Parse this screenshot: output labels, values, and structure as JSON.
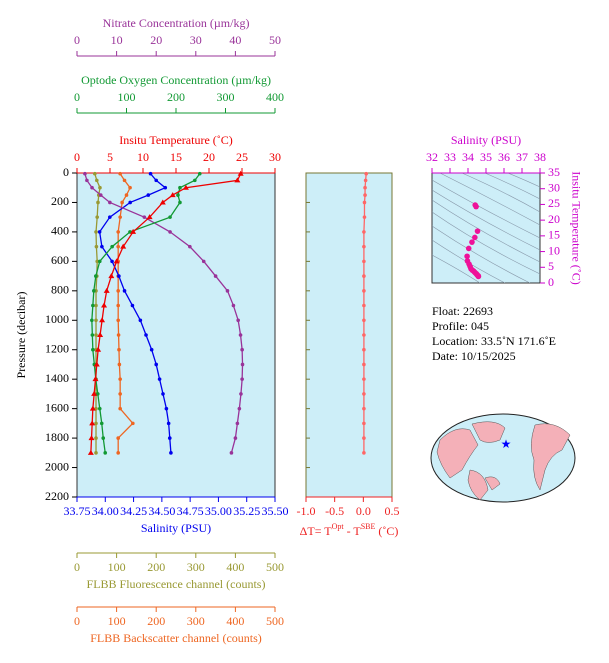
{
  "chart_data": [
    {
      "type": "line",
      "ylabel": "Pressure (decibar)",
      "ylim": [
        0,
        2200
      ],
      "yticks": [
        0,
        200,
        400,
        600,
        800,
        1000,
        1200,
        1400,
        1600,
        1800,
        2000,
        2200
      ],
      "invert_y": true,
      "background": "#cdeef8",
      "axes": [
        {
          "position": "top",
          "label": "Insitu Temperature (˚C)",
          "color": "#ee0000",
          "xlim": [
            0,
            30
          ],
          "xticks": [
            0,
            5,
            10,
            15,
            20,
            25,
            30
          ],
          "marker": "triangle",
          "pressure": [
            5,
            50,
            100,
            150,
            200,
            300,
            400,
            500,
            600,
            700,
            800,
            900,
            1000,
            1100,
            1200,
            1300,
            1400,
            1500,
            1600,
            1700,
            1800,
            1900
          ],
          "values": [
            24.8,
            24.3,
            16.5,
            14.5,
            13.0,
            11.0,
            8.5,
            7.0,
            6.0,
            5.2,
            4.5,
            4.1,
            3.8,
            3.5,
            3.2,
            3.0,
            2.8,
            2.6,
            2.4,
            2.3,
            2.2,
            2.1
          ]
        },
        {
          "position": "top",
          "label": "Optode Oxygen Concentration (µm/kg)",
          "color": "#119933",
          "xlim": [
            0,
            400
          ],
          "xticks": [
            0,
            100,
            200,
            300,
            400
          ],
          "marker": "circle",
          "pressure": [
            5,
            50,
            100,
            150,
            200,
            300,
            400,
            500,
            600,
            700,
            800,
            900,
            1000,
            1100,
            1200,
            1300,
            1400,
            1500,
            1600,
            1700,
            1800,
            1900
          ],
          "values": [
            248,
            238,
            208,
            204,
            208,
            188,
            107,
            71,
            46,
            38,
            34,
            32,
            30,
            31,
            32,
            35,
            38,
            42,
            46,
            50,
            53,
            57
          ]
        },
        {
          "position": "top",
          "label": "Nitrate Concentration (µm/kg)",
          "color": "#993399",
          "xlim": [
            0,
            50
          ],
          "xticks": [
            0,
            10,
            20,
            30,
            40,
            50
          ],
          "marker": "circle",
          "pressure": [
            5,
            50,
            100,
            150,
            200,
            300,
            400,
            500,
            600,
            700,
            800,
            900,
            1000,
            1100,
            1200,
            1300,
            1400,
            1500,
            1600,
            1700,
            1800,
            1900
          ],
          "values": [
            2,
            2.5,
            3.8,
            6,
            8.3,
            17,
            23.5,
            28.5,
            32,
            35,
            38,
            39.5,
            40.7,
            41.3,
            41.7,
            41.8,
            41.7,
            41.4,
            41,
            40.5,
            40,
            39
          ]
        },
        {
          "position": "bottom",
          "label": "Salinity (PSU)",
          "color": "#0000ee",
          "xlim": [
            33.75,
            35.5
          ],
          "xticks": [
            33.75,
            {
              "value": 34,
              "label": "34.00"
            },
            34.25,
            {
              "value": 34.5,
              "label": "34.50"
            },
            34.75,
            {
              "value": 35,
              "label": "35.00"
            },
            35.25,
            {
              "value": 35.5,
              "label": "35.50"
            }
          ],
          "marker": "circle",
          "pressure": [
            5,
            50,
            100,
            150,
            200,
            300,
            400,
            500,
            600,
            700,
            800,
            900,
            1000,
            1100,
            1200,
            1300,
            1400,
            1500,
            1600,
            1700,
            1800,
            1900
          ],
          "values": [
            34.4,
            34.45,
            34.53,
            34.38,
            34.22,
            34.04,
            33.95,
            33.97,
            34.06,
            34.12,
            34.17,
            34.24,
            34.31,
            34.36,
            34.41,
            34.45,
            34.48,
            34.51,
            34.54,
            34.56,
            34.57,
            34.58
          ]
        },
        {
          "position": "bottom",
          "label": "FLBB Fluorescence channel (counts)",
          "color": "#999933",
          "xlim": [
            0,
            500
          ],
          "xticks": [
            0,
            100,
            200,
            300,
            400,
            500
          ],
          "marker": "circle",
          "pressure": [
            5,
            50,
            100,
            150,
            200,
            300,
            400,
            500,
            600,
            700,
            800,
            900,
            1000,
            1100,
            1200,
            1300,
            1400,
            1500,
            1600,
            1700,
            1800,
            1900
          ],
          "values": [
            45,
            50,
            58,
            55,
            53,
            51,
            48,
            49,
            51,
            50,
            48,
            48,
            48,
            48,
            48,
            48,
            48,
            48,
            48,
            48,
            48,
            48
          ]
        },
        {
          "position": "bottom",
          "label": "FLBB Backscatter channel (counts)",
          "color": "#ee6622",
          "xlim": [
            0,
            500
          ],
          "xticks": [
            0,
            100,
            200,
            300,
            400,
            500
          ],
          "marker": "circle",
          "pressure": [
            5,
            50,
            100,
            150,
            200,
            300,
            400,
            500,
            600,
            700,
            800,
            900,
            1000,
            1100,
            1200,
            1300,
            1400,
            1500,
            1600,
            1700,
            1800,
            1900
          ],
          "values": [
            109,
            120,
            134,
            125,
            114,
            109,
            104,
            104,
            104,
            104,
            104,
            104,
            104,
            105,
            106,
            107,
            109,
            109,
            109,
            141,
            104,
            104
          ]
        }
      ]
    },
    {
      "type": "line",
      "xlabel_parts": [
        "ΔT= T",
        "Opt",
        " - T",
        "SBE",
        " (˚C)"
      ],
      "xlabel_color": "#ee2222",
      "color": "#ff6666",
      "xlim": [
        -1,
        0.5
      ],
      "xticks": [
        {
          "value": -1,
          "label": "-1.0"
        },
        -0.5,
        {
          "value": 0,
          "label": "0.0"
        },
        0.5
      ],
      "ylim": [
        0,
        2200
      ],
      "yticks": [
        0,
        200,
        400,
        600,
        800,
        1000,
        1200,
        1400,
        1600,
        1800,
        2000,
        2200
      ],
      "invert_y": true,
      "background": "#cdeef8",
      "pressure": [
        5,
        50,
        100,
        150,
        200,
        300,
        400,
        500,
        600,
        700,
        800,
        900,
        1000,
        1100,
        1200,
        1300,
        1400,
        1500,
        1600,
        1700,
        1800,
        1900
      ],
      "values": [
        0.05,
        0.04,
        0.03,
        0.03,
        0.02,
        0.02,
        0.01,
        0.01,
        0.01,
        0.01,
        0.01,
        0.01,
        0.01,
        0.01,
        0.01,
        0.01,
        0.01,
        0.01,
        0.01,
        0.01,
        0.01,
        0.01
      ]
    },
    {
      "type": "scatter",
      "xlabel": "Salinity (PSU)",
      "ylabel": "Insitu Temperature (˚C)",
      "color": "#ee1199",
      "axis_color": "#cc00cc",
      "background": "#cdeef8",
      "xlim": [
        32,
        38
      ],
      "xticks": [
        32,
        33,
        34,
        35,
        36,
        37,
        38
      ],
      "ylim": [
        0,
        35
      ],
      "yticks": [
        0,
        5,
        10,
        15,
        20,
        25,
        30,
        35
      ],
      "x": [
        34.4,
        34.45,
        34.53,
        34.38,
        34.22,
        34.04,
        33.95,
        33.97,
        34.06,
        34.12,
        34.17,
        34.24,
        34.31,
        34.36,
        34.41,
        34.45,
        34.48,
        34.51,
        34.54,
        34.56,
        34.57,
        34.58
      ],
      "values": [
        24.8,
        24.3,
        16.5,
        14.5,
        13.0,
        11.0,
        8.5,
        7.0,
        6.0,
        5.2,
        4.5,
        4.1,
        3.8,
        3.5,
        3.2,
        3.0,
        2.8,
        2.6,
        2.4,
        2.3,
        2.2,
        2.1
      ]
    }
  ],
  "info": {
    "lines": [
      "Float:  22693",
      "Profile:  045",
      "Location:  33.5˚N  171.6˚E",
      "Date:  10/15/2025"
    ]
  }
}
